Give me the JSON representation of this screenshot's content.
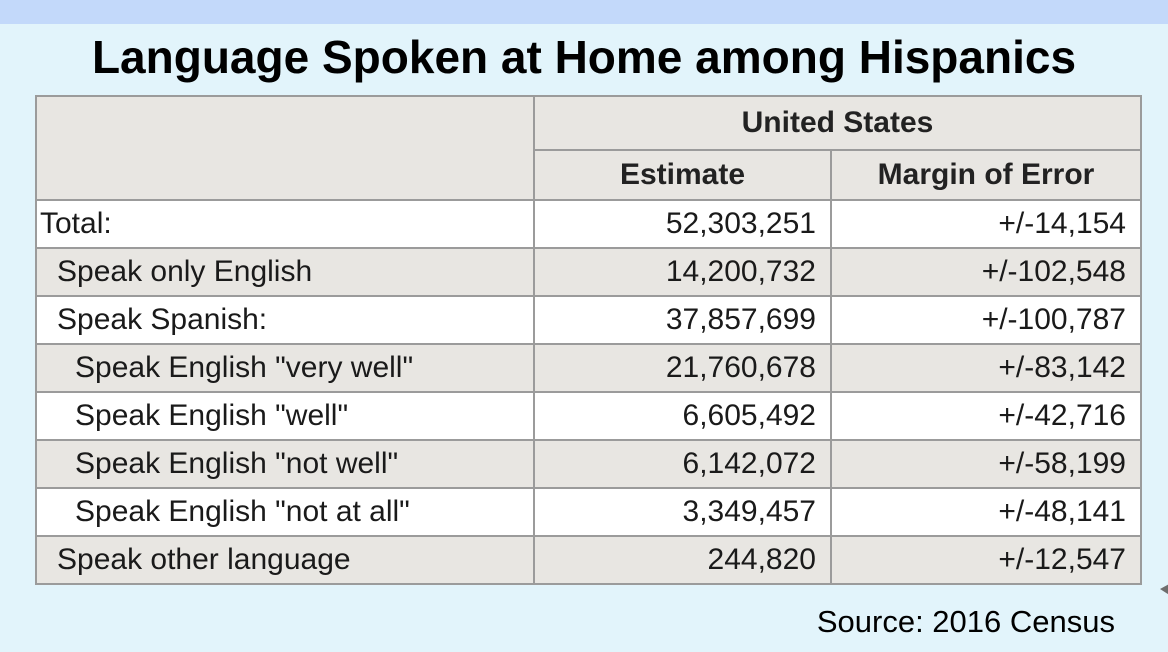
{
  "page": {
    "title": "Language Spoken at Home among Hispanics",
    "source_note": "Source: 2016 Census",
    "colors": {
      "band": "#c3d9fa",
      "background": "#e2f4fb",
      "row_stripe": "#e8e6e2",
      "row_plain": "#ffffff",
      "table_border": "#9b9b9b",
      "text": "#1a1a1a"
    }
  },
  "table": {
    "group_header": "United States",
    "columns": [
      "Estimate",
      "Margin of Error"
    ],
    "rows": [
      {
        "label": "Total:",
        "indent": 0,
        "estimate": "52,303,251",
        "margin_of_error": "+/-14,154"
      },
      {
        "label": "Speak only English",
        "indent": 1,
        "estimate": "14,200,732",
        "margin_of_error": "+/-102,548"
      },
      {
        "label": "Speak Spanish:",
        "indent": 1,
        "estimate": "37,857,699",
        "margin_of_error": "+/-100,787"
      },
      {
        "label": "Speak English \"very well\"",
        "indent": 2,
        "estimate": "21,760,678",
        "margin_of_error": "+/-83,142"
      },
      {
        "label": "Speak English \"well\"",
        "indent": 2,
        "estimate": "6,605,492",
        "margin_of_error": "+/-42,716"
      },
      {
        "label": "Speak English \"not well\"",
        "indent": 2,
        "estimate": "6,142,072",
        "margin_of_error": "+/-58,199"
      },
      {
        "label": "Speak English \"not at all\"",
        "indent": 2,
        "estimate": "3,349,457",
        "margin_of_error": "+/-48,141"
      },
      {
        "label": "Speak other language",
        "indent": 1,
        "estimate": "244,820",
        "margin_of_error": "+/-12,547"
      }
    ]
  }
}
